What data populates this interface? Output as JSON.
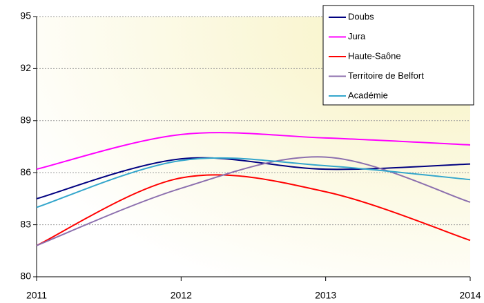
{
  "chart_data": {
    "type": "line",
    "x": [
      2011,
      2012,
      2013,
      2014
    ],
    "xlim": [
      2011,
      2014
    ],
    "xticks": [
      2011,
      2012,
      2013,
      2014
    ],
    "ylim": [
      80,
      95
    ],
    "yticks": [
      80,
      83,
      86,
      89,
      92,
      95
    ],
    "grid": true,
    "legend": "upper right",
    "series": [
      {
        "name": "Doubs",
        "color": "#000080",
        "values": [
          84.5,
          86.8,
          86.2,
          86.5
        ]
      },
      {
        "name": "Jura",
        "color": "#ff00ff",
        "values": [
          86.2,
          88.2,
          88.0,
          87.6
        ]
      },
      {
        "name": "Haute-Saône",
        "color": "#ff0000",
        "values": [
          81.8,
          85.7,
          84.9,
          82.1
        ]
      },
      {
        "name": "Territoire de Belfort",
        "color": "#8c6fae",
        "values": [
          81.8,
          85.1,
          86.9,
          84.3
        ]
      },
      {
        "name": "Académie",
        "color": "#33a6cc",
        "values": [
          84.0,
          86.7,
          86.4,
          85.6
        ]
      }
    ]
  }
}
